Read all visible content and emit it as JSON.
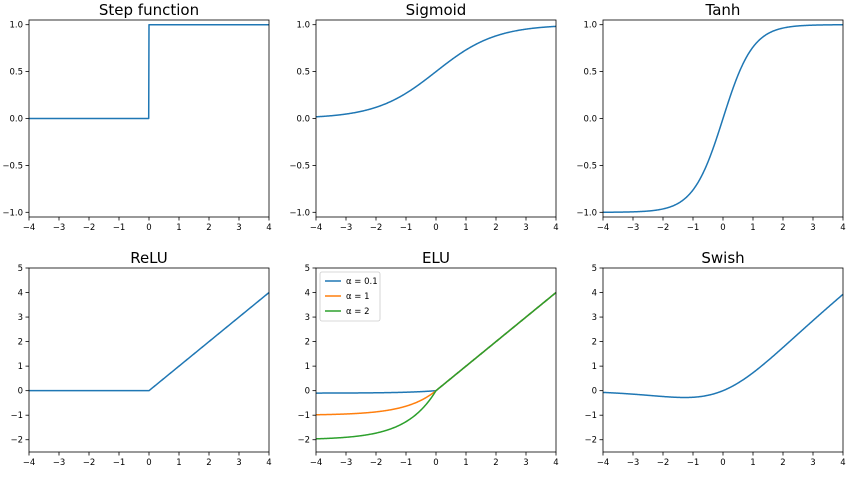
{
  "colors": {
    "blue": "#1f77b4",
    "orange": "#ff7f0e",
    "green": "#2ca02c"
  },
  "chart_data": [
    {
      "type": "line",
      "title": "Step function",
      "function": "step",
      "xlim": [
        -4,
        4
      ],
      "ylim": [
        -1.05,
        1.05
      ],
      "xticks": [
        -4,
        -3,
        -2,
        -1,
        0,
        1,
        2,
        3,
        4
      ],
      "yticks": [
        -1.0,
        -0.5,
        0.0,
        0.5,
        1.0
      ],
      "yticklabels": [
        "−1.0",
        "−0.5",
        "0.0",
        "0.5",
        "1.0"
      ],
      "series": [
        {
          "name": "step",
          "color": "#1f77b4"
        }
      ]
    },
    {
      "type": "line",
      "title": "Sigmoid",
      "function": "sigmoid",
      "xlim": [
        -4,
        4
      ],
      "ylim": [
        -1.05,
        1.05
      ],
      "xticks": [
        -4,
        -3,
        -2,
        -1,
        0,
        1,
        2,
        3,
        4
      ],
      "yticks": [
        -1.0,
        -0.5,
        0.0,
        0.5,
        1.0
      ],
      "yticklabels": [
        "−1.0",
        "−0.5",
        "0.0",
        "0.5",
        "1.0"
      ],
      "series": [
        {
          "name": "sigmoid",
          "color": "#1f77b4"
        }
      ]
    },
    {
      "type": "line",
      "title": "Tanh",
      "function": "tanh",
      "xlim": [
        -4,
        4
      ],
      "ylim": [
        -1.05,
        1.05
      ],
      "xticks": [
        -4,
        -3,
        -2,
        -1,
        0,
        1,
        2,
        3,
        4
      ],
      "yticks": [
        -1.0,
        -0.5,
        0.0,
        0.5,
        1.0
      ],
      "yticklabels": [
        "−1.0",
        "−0.5",
        "0.0",
        "0.5",
        "1.0"
      ],
      "series": [
        {
          "name": "tanh",
          "color": "#1f77b4"
        }
      ]
    },
    {
      "type": "line",
      "title": "ReLU",
      "function": "relu",
      "xlim": [
        -4,
        4
      ],
      "ylim": [
        -2.5,
        5
      ],
      "xticks": [
        -4,
        -3,
        -2,
        -1,
        0,
        1,
        2,
        3,
        4
      ],
      "yticks": [
        -2,
        -1,
        0,
        1,
        2,
        3,
        4,
        5
      ],
      "yticklabels": [
        "−2",
        "−1",
        "0",
        "1",
        "2",
        "3",
        "4",
        "5"
      ],
      "series": [
        {
          "name": "relu",
          "color": "#1f77b4"
        }
      ]
    },
    {
      "type": "line",
      "title": "ELU",
      "function": "elu",
      "xlim": [
        -4,
        4
      ],
      "ylim": [
        -2.5,
        5
      ],
      "xticks": [
        -4,
        -3,
        -2,
        -1,
        0,
        1,
        2,
        3,
        4
      ],
      "yticks": [
        -2,
        -1,
        0,
        1,
        2,
        3,
        4,
        5
      ],
      "yticklabels": [
        "−2",
        "−1",
        "0",
        "1",
        "2",
        "3",
        "4",
        "5"
      ],
      "legend": "upper left",
      "series": [
        {
          "name": "α = 0.1",
          "alpha": 0.1,
          "color": "#1f77b4"
        },
        {
          "name": "α = 1",
          "alpha": 1,
          "color": "#ff7f0e"
        },
        {
          "name": "α = 2",
          "alpha": 2,
          "color": "#2ca02c"
        }
      ]
    },
    {
      "type": "line",
      "title": "Swish",
      "function": "swish",
      "xlim": [
        -4,
        4
      ],
      "ylim": [
        -2.5,
        5
      ],
      "xticks": [
        -4,
        -3,
        -2,
        -1,
        0,
        1,
        2,
        3,
        4
      ],
      "yticks": [
        -2,
        -1,
        0,
        1,
        2,
        3,
        4,
        5
      ],
      "yticklabels": [
        "−2",
        "−1",
        "0",
        "1",
        "2",
        "3",
        "4",
        "5"
      ],
      "series": [
        {
          "name": "swish",
          "color": "#1f77b4"
        }
      ]
    }
  ]
}
